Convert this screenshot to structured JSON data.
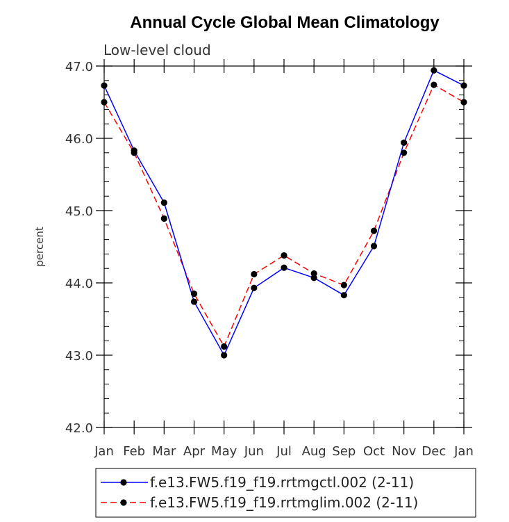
{
  "chart_data": {
    "type": "line",
    "title": "Annual Cycle Global Mean Climatology",
    "subtitle": "Low-level cloud",
    "xlabel": "",
    "ylabel": "percent",
    "categories": [
      "Jan",
      "Feb",
      "Mar",
      "Apr",
      "May",
      "Jun",
      "Jul",
      "Aug",
      "Sep",
      "Oct",
      "Nov",
      "Dec",
      "Jan"
    ],
    "ylim": [
      42.0,
      47.0
    ],
    "yticks": [
      "42.0",
      "43.0",
      "44.0",
      "45.0",
      "46.0",
      "47.0"
    ],
    "series": [
      {
        "name": "f.e13.FW5.f19_f19.rrtmgctl.002 (2-11)",
        "color": "#0000ff",
        "style": "solid",
        "values": [
          46.73,
          45.83,
          45.11,
          43.74,
          43.0,
          43.93,
          44.21,
          44.07,
          43.83,
          44.51,
          45.94,
          46.94,
          46.73
        ]
      },
      {
        "name": "f.e13.FW5.f19_f19.rrtmglim.002 (2-11)",
        "color": "#ff0000",
        "style": "dashed",
        "values": [
          46.5,
          45.8,
          44.89,
          43.85,
          43.12,
          44.12,
          44.38,
          44.13,
          43.97,
          44.72,
          45.8,
          46.74,
          46.5
        ]
      }
    ]
  }
}
